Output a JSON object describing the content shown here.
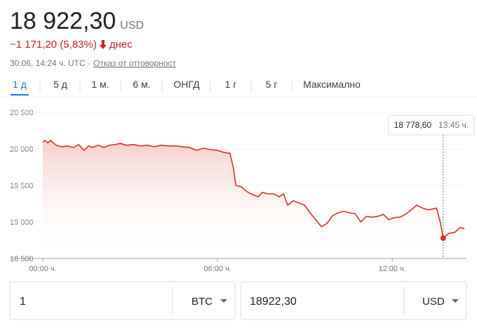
{
  "header": {
    "price": "18 922,30",
    "currency": "USD",
    "change": "−1 171,20 (5,83%)",
    "period": "днес",
    "timestamp": "30.06, 14:24 ч. UTC ·",
    "disclaimer": "Отказ от отговорност"
  },
  "tabs": {
    "items": [
      "1 д",
      "5 д",
      "1 м.",
      "6 м.",
      "ОНГД",
      "1 г",
      "5 г",
      "Максимално"
    ],
    "active": 0
  },
  "chart_data": {
    "type": "line",
    "color": "#d93025",
    "x": [
      0,
      0.07,
      0.17,
      0.27,
      0.46,
      0.65,
      0.84,
      1.04,
      1.23,
      1.42,
      1.57,
      1.71,
      1.9,
      2.1,
      2.29,
      2.48,
      2.67,
      2.87,
      3.11,
      3.35,
      3.59,
      3.83,
      4.07,
      4.31,
      4.55,
      4.8,
      5.04,
      5.28,
      5.52,
      5.76,
      6,
      6.24,
      6.43,
      6.55,
      6.63,
      6.82,
      7.01,
      7.2,
      7.4,
      7.54,
      7.73,
      7.93,
      8.12,
      8.27,
      8.41,
      8.6,
      8.8,
      8.99,
      9.18,
      9.37,
      9.57,
      9.76,
      9.95,
      10.14,
      10.34,
      10.53,
      10.72,
      10.92,
      11.11,
      11.3,
      11.49,
      11.69,
      11.88,
      12.07,
      12.27,
      12.46,
      12.65,
      12.84,
      13.04,
      13.23,
      13.37,
      13.52,
      13.66,
      13.75,
      13.95,
      14.14,
      14.34,
      14.48
    ],
    "values": [
      20095,
      20115,
      20085,
      20115,
      20050,
      20030,
      20040,
      20020,
      20060,
      19980,
      20040,
      20020,
      20050,
      20020,
      20050,
      20060,
      20075,
      20050,
      20060,
      20040,
      20050,
      20030,
      20050,
      20040,
      20040,
      20030,
      20020,
      19980,
      20010,
      19990,
      19980,
      19950,
      19940,
      19730,
      19500,
      19480,
      19415,
      19375,
      19345,
      19405,
      19385,
      19385,
      19345,
      19385,
      19230,
      19290,
      19260,
      19230,
      19125,
      19030,
      18935,
      18980,
      19085,
      19125,
      19145,
      19125,
      19115,
      19000,
      19075,
      19065,
      19075,
      19105,
      19030,
      19060,
      19065,
      19105,
      19165,
      19230,
      19190,
      19165,
      19175,
      19190,
      18980,
      18778.6,
      18845,
      18855,
      18925,
      18905
    ],
    "xlim": [
      0,
      14.55
    ],
    "ylim": [
      18500,
      20500
    ],
    "xticks": [
      {
        "value": 0,
        "label": "00:00 ч."
      },
      {
        "value": 6,
        "label": "06:00 ч."
      },
      {
        "value": 12,
        "label": "12:00 ч."
      }
    ],
    "yticks": [
      {
        "value": 18500,
        "label": "18 500"
      },
      {
        "value": 19000,
        "label": "19 000"
      },
      {
        "value": 19500,
        "label": "19 500"
      },
      {
        "value": 20000,
        "label": "20 000"
      },
      {
        "value": 20500,
        "label": "20 500"
      }
    ],
    "grid": true,
    "tooltip": {
      "x": 13.75,
      "value": 18778.6,
      "value_label": "18 778,60",
      "time": "13:45 ч."
    }
  },
  "converter": {
    "amount": "1",
    "from": "BTC",
    "result": "18922,30",
    "to": "USD"
  }
}
